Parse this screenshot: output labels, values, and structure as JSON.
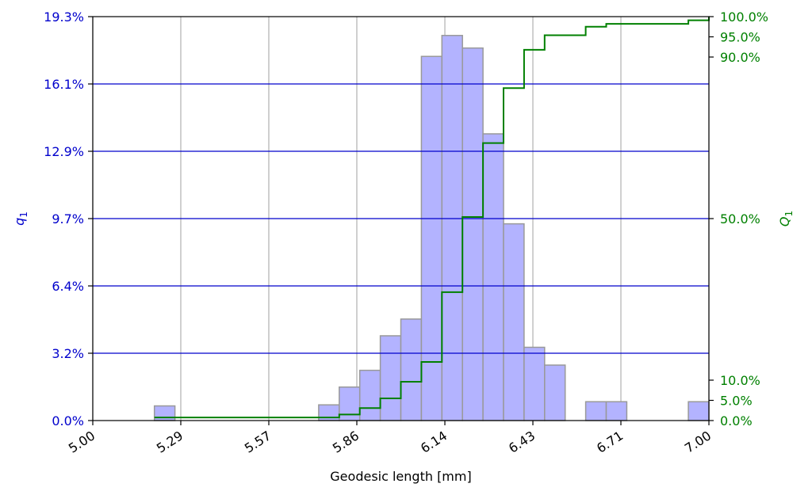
{
  "chart_data": {
    "type": "bar",
    "title": "",
    "xlabel": "Geodesic length [mm]",
    "ylabel_left": "q",
    "ylabel_left_sub": "1",
    "ylabel_right": "Q",
    "ylabel_right_sub": "1",
    "xlim": [
      5.0,
      7.0
    ],
    "ylim_left": [
      0,
      19.3
    ],
    "ylim_right": [
      0,
      100
    ],
    "x_ticks": [
      "5.00",
      "5.29",
      "5.57",
      "5.86",
      "6.14",
      "6.43",
      "6.71",
      "7.00"
    ],
    "x_tick_values": [
      5.0,
      5.2857,
      5.5714,
      5.8571,
      6.1429,
      6.4286,
      6.7143,
      7.0
    ],
    "y_left_ticks": [
      "0.0%",
      "3.2%",
      "6.4%",
      "9.7%",
      "12.9%",
      "16.1%",
      "19.3%"
    ],
    "y_left_tick_values": [
      0,
      3.2167,
      6.4333,
      9.65,
      12.8667,
      16.0833,
      19.3
    ],
    "y_right_ticks": [
      "0.0%",
      "5.0%",
      "10.0%",
      "50.0%",
      "90.0%",
      "95.0%",
      "100.0%"
    ],
    "y_right_tick_values": [
      0,
      5,
      10,
      50,
      90,
      95,
      100
    ],
    "grid": {
      "x": true,
      "y_left": true
    },
    "bin_width": 0.0667,
    "histogram": {
      "name": "q1",
      "color": "#b3b3ff",
      "edge_color": "#999999",
      "bins": [
        {
          "x0": 5.2,
          "value": 0.7
        },
        {
          "x0": 5.7333,
          "value": 0.75
        },
        {
          "x0": 5.8,
          "value": 1.6
        },
        {
          "x0": 5.8667,
          "value": 2.4
        },
        {
          "x0": 5.9333,
          "value": 4.05
        },
        {
          "x0": 6.0,
          "value": 4.85
        },
        {
          "x0": 6.0667,
          "value": 17.4
        },
        {
          "x0": 6.1333,
          "value": 18.4
        },
        {
          "x0": 6.2,
          "value": 17.8
        },
        {
          "x0": 6.2667,
          "value": 13.7
        },
        {
          "x0": 6.3333,
          "value": 9.4
        },
        {
          "x0": 6.4,
          "value": 3.5
        },
        {
          "x0": 6.4667,
          "value": 2.65
        },
        {
          "x0": 6.6,
          "value": 0.9
        },
        {
          "x0": 6.6667,
          "value": 0.9
        },
        {
          "x0": 6.9333,
          "value": 0.9
        }
      ]
    },
    "cumulative": {
      "name": "Q1",
      "color": "#008000",
      "x": [
        5.2,
        5.7333,
        5.8,
        5.8667,
        5.9333,
        6.0,
        6.0667,
        6.1333,
        6.2,
        6.2667,
        6.3333,
        6.4,
        6.4667,
        6.6,
        6.6667,
        6.9333,
        7.0
      ],
      "values": [
        0.75,
        0.75,
        1.5,
        3.1,
        5.5,
        9.6,
        14.5,
        31.8,
        50.4,
        68.7,
        82.3,
        91.8,
        95.4,
        97.5,
        98.2,
        99.1,
        100
      ]
    }
  }
}
